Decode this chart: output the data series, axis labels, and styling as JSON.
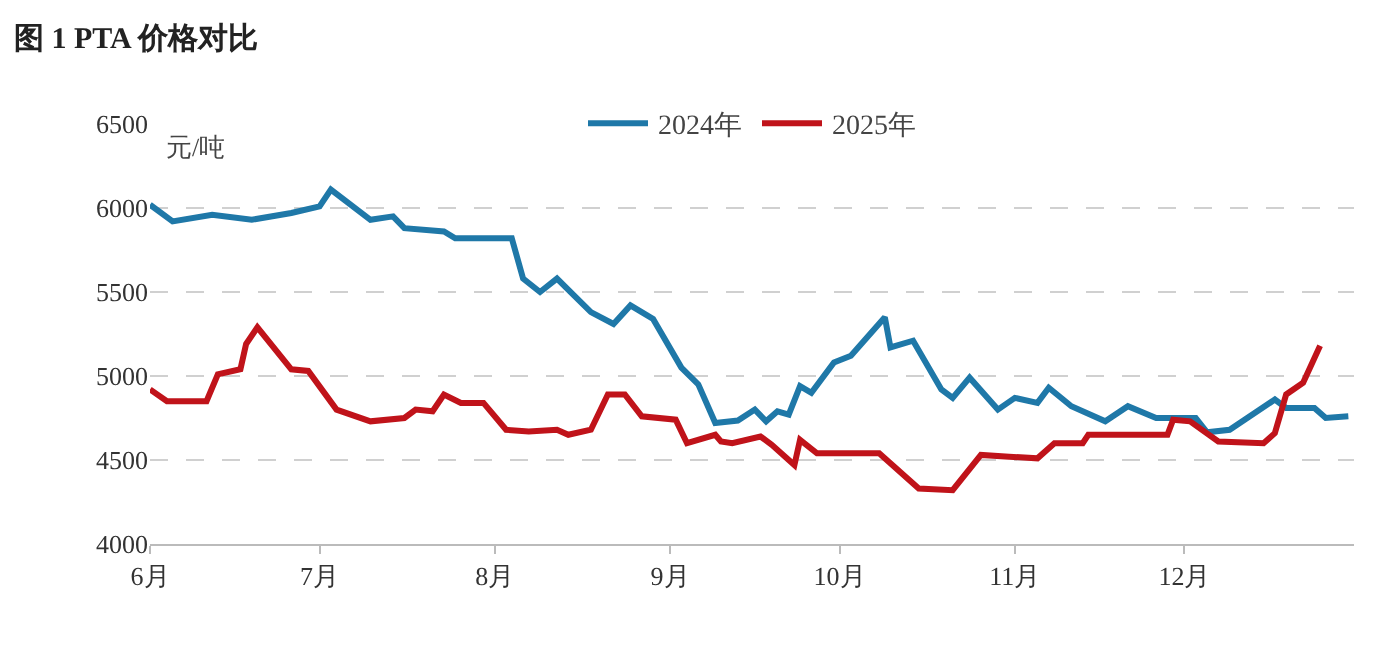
{
  "chart_data": {
    "type": "line",
    "title": "图 1 PTA 价格对比",
    "ylabel": "元/吨",
    "ylim": [
      4000,
      6500
    ],
    "yticks": [
      4000,
      4500,
      5000,
      5500,
      6000,
      6500
    ],
    "xlim": [
      "--06-01",
      "--12-31"
    ],
    "xticks": [
      {
        "value": "--06-01",
        "label": "6月"
      },
      {
        "value": "--07-01",
        "label": "7月"
      },
      {
        "value": "--08-01",
        "label": "8月"
      },
      {
        "value": "--09-01",
        "label": "9月"
      },
      {
        "value": "--10-01",
        "label": "10月"
      },
      {
        "value": "--11-01",
        "label": "11月"
      },
      {
        "value": "--12-01",
        "label": "12月"
      }
    ],
    "grid": "y",
    "legend": "top",
    "marker": "none",
    "line_style": "solid",
    "series": [
      {
        "name": "2024年",
        "color": "#1f78a8",
        "x": [
          "--06-01",
          "--06-05",
          "--06-12",
          "--06-19",
          "--06-26",
          "--07-01",
          "--07-03",
          "--07-10",
          "--07-14",
          "--07-16",
          "--07-23",
          "--07-25",
          "--08-04",
          "--08-06",
          "--08-09",
          "--08-12",
          "--08-15",
          "--08-18",
          "--08-22",
          "--08-25",
          "--08-29",
          "--09-03",
          "--09-06",
          "--09-09",
          "--09-13",
          "--09-16",
          "--09-18",
          "--09-20",
          "--09-22",
          "--09-24",
          "--09-26",
          "--09-30",
          "--10-03",
          "--10-09",
          "--10-10",
          "--10-14",
          "--10-19",
          "--10-21",
          "--10-24",
          "--10-29",
          "--11-01",
          "--11-05",
          "--11-07",
          "--11-11",
          "--11-17",
          "--11-21",
          "--11-26",
          "--12-03",
          "--12-05",
          "--12-09",
          "--12-17",
          "--12-19",
          "--12-24",
          "--12-26",
          "--12-30"
        ],
        "values": [
          6020,
          5920,
          5960,
          5930,
          5970,
          6010,
          6110,
          5930,
          5950,
          5880,
          5860,
          5820,
          5820,
          5580,
          5500,
          5580,
          5480,
          5380,
          5310,
          5420,
          5340,
          5050,
          4950,
          4720,
          4735,
          4800,
          4730,
          4790,
          4770,
          4940,
          4900,
          5080,
          5120,
          5350,
          5170,
          5210,
          4920,
          4870,
          4990,
          4800,
          4870,
          4840,
          4930,
          4820,
          4730,
          4820,
          4750,
          4750,
          4665,
          4680,
          4860,
          4810,
          4810,
          4750,
          4760
        ]
      },
      {
        "name": "2025年",
        "color": "#c0131a",
        "x": [
          "--06-01",
          "--06-04",
          "--06-11",
          "--06-13",
          "--06-17",
          "--06-18",
          "--06-20",
          "--06-26",
          "--06-29",
          "--07-04",
          "--07-10",
          "--07-16",
          "--07-18",
          "--07-21",
          "--07-23",
          "--07-26",
          "--07-30",
          "--08-03",
          "--08-07",
          "--08-12",
          "--08-14",
          "--08-18",
          "--08-21",
          "--08-24",
          "--08-27",
          "--09-02",
          "--09-04",
          "--09-09",
          "--09-10",
          "--09-12",
          "--09-17",
          "--09-19",
          "--09-23",
          "--09-24",
          "--09-27",
          "--10-08",
          "--10-15",
          "--10-21",
          "--10-26",
          "--10-31",
          "--11-05",
          "--11-08",
          "--11-13",
          "--11-14",
          "--11-19",
          "--11-28",
          "--11-29",
          "--12-02",
          "--12-07",
          "--12-15",
          "--12-17",
          "--12-19",
          "--12-22",
          "--12-25"
        ],
        "values": [
          4920,
          4850,
          4850,
          5010,
          5040,
          5190,
          5290,
          5040,
          5030,
          4800,
          4730,
          4750,
          4800,
          4790,
          4890,
          4840,
          4840,
          4680,
          4670,
          4680,
          4650,
          4680,
          4890,
          4890,
          4760,
          4740,
          4600,
          4650,
          4610,
          4600,
          4640,
          4590,
          4470,
          4620,
          4540,
          4540,
          4330,
          4320,
          4530,
          4520,
          4510,
          4600,
          4600,
          4650,
          4650,
          4650,
          4740,
          4730,
          4610,
          4600,
          4660,
          4890,
          4960,
          5180
        ]
      }
    ]
  }
}
